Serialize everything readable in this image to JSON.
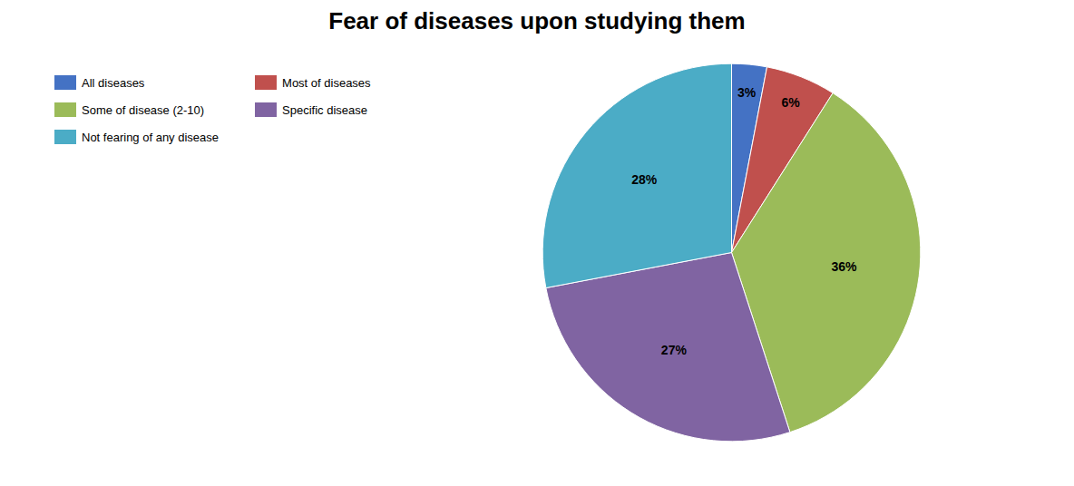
{
  "chart_data": {
    "type": "pie",
    "title": "Fear of diseases upon studying them",
    "categories": [
      "All diseases",
      "Most of diseases",
      "Some of disease (2-10)",
      "Specific disease",
      "Not fearing of any disease"
    ],
    "values": [
      3,
      6,
      36,
      27,
      28
    ],
    "value_labels": [
      "3%",
      "6%",
      "36%",
      "27%",
      "28%"
    ],
    "colors": [
      "#4472C4",
      "#C0504D",
      "#9BBB59",
      "#8064A2",
      "#4BACC6"
    ],
    "data_labels": true,
    "legend": "left"
  }
}
